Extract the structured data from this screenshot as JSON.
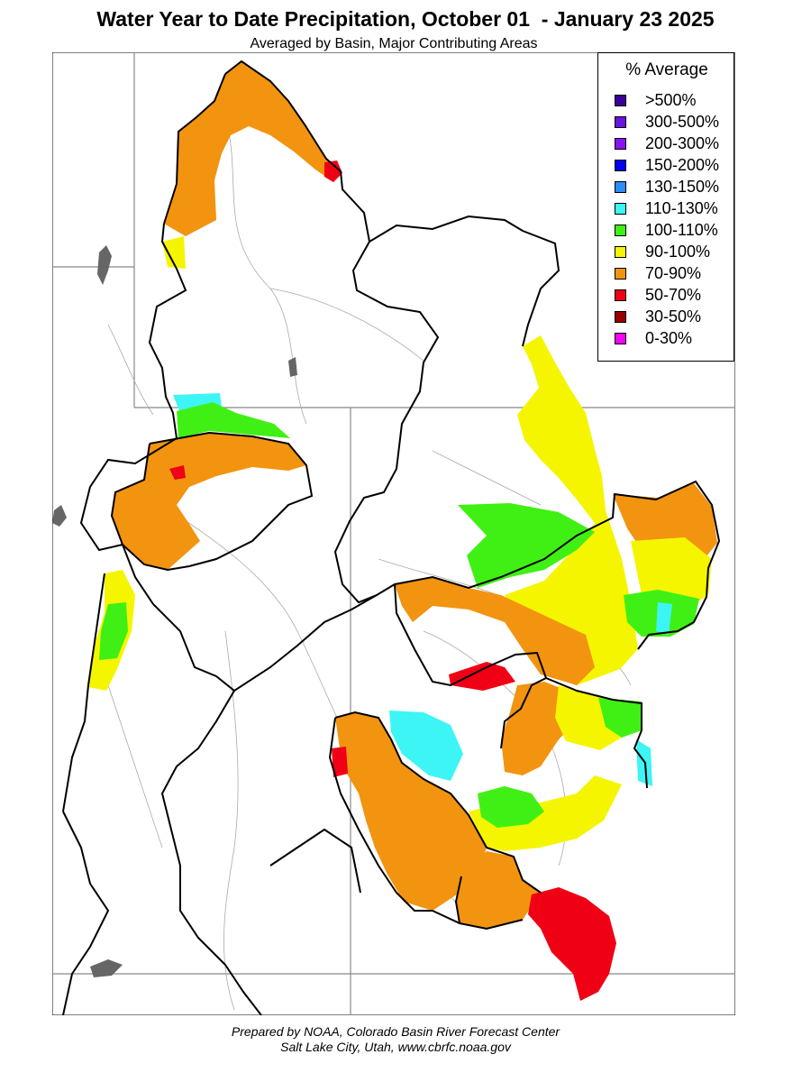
{
  "title": "Water Year to Date Precipitation, October 01  - January 23 2025",
  "subtitle": "Averaged by Basin, Major Contributing Areas",
  "legend": {
    "title": "% Average",
    "items": [
      {
        "label": ">500%",
        "color": "#3d0099"
      },
      {
        "label": "300-500%",
        "color": "#6a14e0"
      },
      {
        "label": "200-300%",
        "color": "#8a14f0"
      },
      {
        "label": "150-200%",
        "color": "#0000f5"
      },
      {
        "label": "130-150%",
        "color": "#2e8cf5"
      },
      {
        "label": "110-130%",
        "color": "#3df5f5"
      },
      {
        "label": "100-110%",
        "color": "#40f014"
      },
      {
        "label": "90-100%",
        "color": "#f5f500"
      },
      {
        "label": "70-90%",
        "color": "#f29410"
      },
      {
        "label": "50-70%",
        "color": "#f00014"
      },
      {
        "label": "30-50%",
        "color": "#990000"
      },
      {
        "label": "0-30%",
        "color": "#f500f5"
      }
    ]
  },
  "credit": {
    "line1": "Prepared by NOAA, Colorado Basin River Forecast Center",
    "line2": "Salt Lake City, Utah, www.cbrfc.noaa.gov"
  }
}
